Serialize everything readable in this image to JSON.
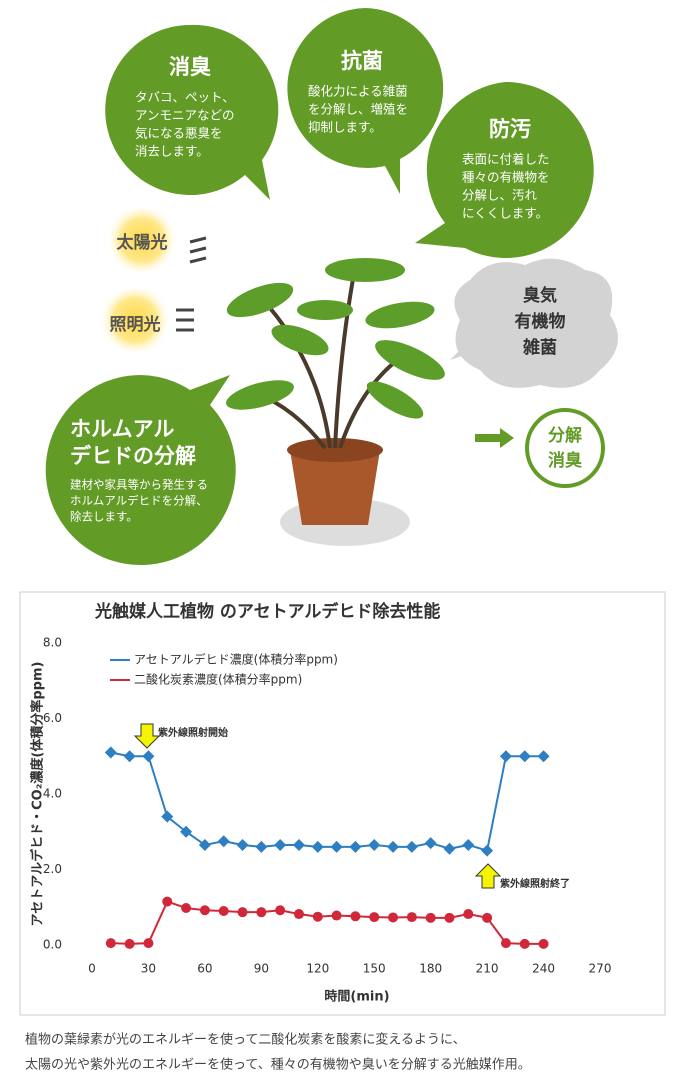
{
  "illustration": {
    "bubbles": [
      {
        "title": "消臭",
        "lines": [
          "タバコ、ペット、",
          "アンモニアなどの",
          "気になる悪臭を",
          "消去します。"
        ]
      },
      {
        "title": "抗菌",
        "lines": [
          "酸化力による雑菌",
          "を分解し、増殖を",
          "抑制します。"
        ]
      },
      {
        "title": "防汚",
        "lines": [
          "表面に付着した",
          "種々の有機物を",
          "分解し、汚れ",
          "にくくします。"
        ]
      },
      {
        "title": [
          "ホルムアル",
          "デヒドの分解"
        ],
        "lines": [
          "建材や家具等から発生する",
          "ホルムアルデヒドを分解、",
          "除去します。"
        ]
      }
    ],
    "lights": [
      "太陽光",
      "照明光"
    ],
    "cloud": [
      "臭気",
      "有機物",
      "雑菌"
    ],
    "result": [
      "分解",
      "消臭"
    ]
  },
  "chart_data": {
    "type": "line",
    "title": "光触媒人工植物 のアセトアルデヒド除去性能",
    "xlabel": "時間(min)",
    "ylabel": "アセトアルデヒド・CO₂濃度(体積分率ppm)",
    "x": [
      10,
      20,
      30,
      40,
      50,
      60,
      70,
      80,
      90,
      100,
      110,
      120,
      130,
      140,
      150,
      160,
      170,
      180,
      190,
      200,
      210,
      220,
      230,
      240
    ],
    "series": [
      {
        "name": "アセトアルデヒド濃度(体積分率ppm)",
        "color": "#2e7fc1",
        "marker": "diamond",
        "values": [
          5.1,
          5.0,
          5.0,
          3.4,
          3.0,
          2.65,
          2.75,
          2.65,
          2.6,
          2.65,
          2.65,
          2.6,
          2.6,
          2.6,
          2.65,
          2.6,
          2.6,
          2.7,
          2.55,
          2.65,
          2.5,
          5.0,
          5.0,
          5.0
        ]
      },
      {
        "name": "二酸化炭素濃度(体積分率ppm)",
        "color": "#d0283a",
        "marker": "circle",
        "values": [
          0.05,
          0.03,
          0.05,
          1.15,
          0.98,
          0.92,
          0.9,
          0.87,
          0.87,
          0.92,
          0.82,
          0.75,
          0.78,
          0.76,
          0.74,
          0.73,
          0.74,
          0.72,
          0.72,
          0.82,
          0.72,
          0.05,
          0.03,
          0.03
        ]
      }
    ],
    "xlim": [
      0,
      270
    ],
    "xticks": [
      0,
      30,
      60,
      90,
      120,
      150,
      180,
      210,
      240,
      270
    ],
    "ylim": [
      0,
      8
    ],
    "yticks": [
      {
        "value": 0,
        "label": "0.0"
      },
      {
        "value": 2,
        "label": "2.0"
      },
      {
        "value": 4,
        "label": "4.0"
      },
      {
        "value": 6,
        "label": "6.0"
      },
      {
        "value": 8,
        "label": "8.0"
      }
    ],
    "annotations": [
      "紫外線照射開始",
      "紫外線照射終了"
    ],
    "grid": false
  },
  "caption": [
    "植物の葉緑素が光のエネルギーを使って二酸化炭素を酸素に変えるように、",
    "太陽の光や紫外光のエネルギーを使って、種々の有機物や臭いを分解する光触媒作用。"
  ]
}
